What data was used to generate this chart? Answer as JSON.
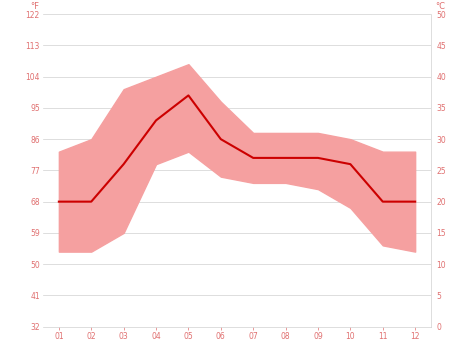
{
  "months": [
    1,
    2,
    3,
    4,
    5,
    6,
    7,
    8,
    9,
    10,
    11,
    12
  ],
  "month_labels": [
    "01",
    "02",
    "03",
    "04",
    "05",
    "06",
    "07",
    "08",
    "09",
    "10",
    "11",
    "12"
  ],
  "avg_temp_c": [
    20,
    20,
    26,
    33,
    37,
    30,
    27,
    27,
    27,
    26,
    20,
    20
  ],
  "max_temp_c": [
    28,
    30,
    38,
    40,
    42,
    36,
    31,
    31,
    31,
    30,
    28,
    28
  ],
  "min_temp_c": [
    12,
    12,
    15,
    26,
    28,
    24,
    23,
    23,
    22,
    19,
    13,
    12
  ],
  "line_color": "#cc0000",
  "band_color": "#f5a0a0",
  "bg_color": "#ffffff",
  "grid_color": "#d0d0d0",
  "tick_color": "#e07070",
  "ylim_c": [
    0,
    50
  ],
  "yticks_c": [
    0,
    5,
    10,
    15,
    20,
    25,
    30,
    35,
    40,
    45,
    50
  ],
  "ytick_labels_f": [
    "32",
    "41",
    "50",
    "59",
    "68",
    "77",
    "86",
    "95",
    "104",
    "113",
    "122"
  ],
  "ytick_labels_c": [
    "0",
    "5",
    "10",
    "15",
    "20",
    "25",
    "30",
    "35",
    "40",
    "45",
    "50"
  ],
  "ylabel_left": "°F",
  "ylabel_right": "°C",
  "line_width": 1.5,
  "tick_fontsize": 5.5
}
